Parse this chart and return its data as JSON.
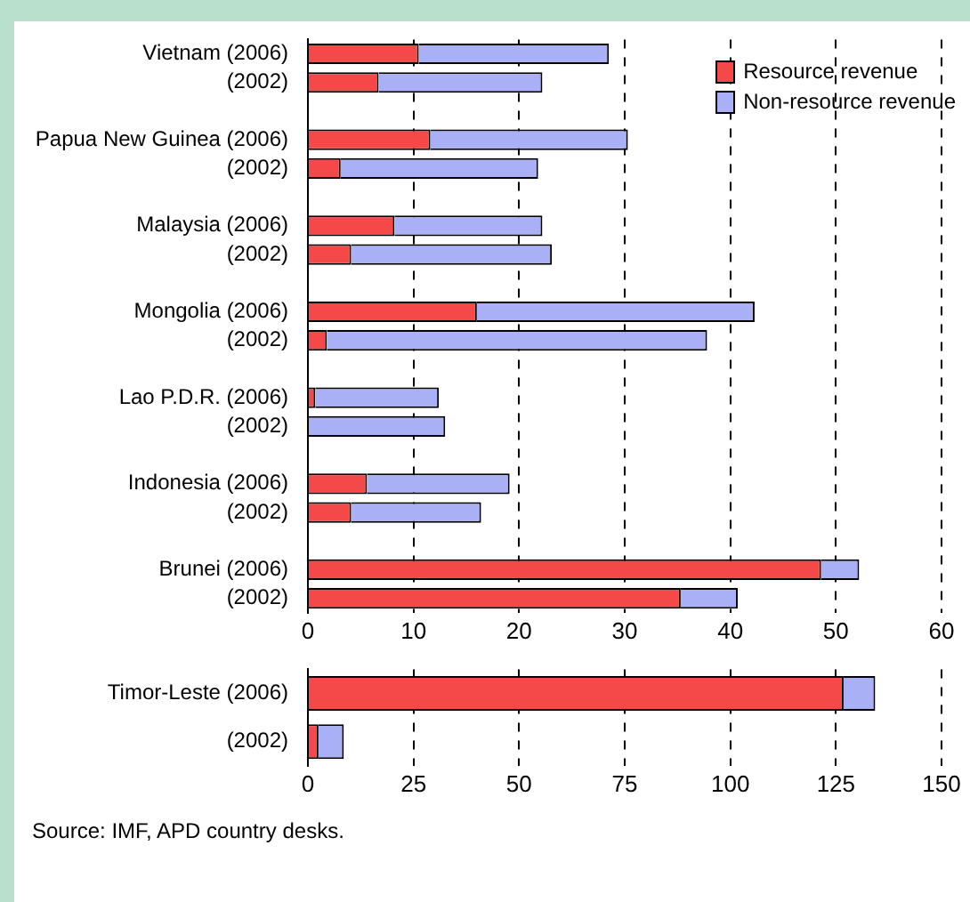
{
  "chart_data": [
    {
      "type": "bar",
      "orientation": "horizontal",
      "stacked": true,
      "categories": [
        "Vietnam (2006)",
        "(2002)",
        null,
        "Papua New Guinea (2006)",
        "(2002)",
        null,
        "Malaysia (2006)",
        "(2002)",
        null,
        "Mongolia (2006)",
        "(2002)",
        null,
        "Lao P.D.R. (2006)",
        "(2002)",
        null,
        "Indonesia (2006)",
        "(2002)",
        null,
        "Brunei (2006)",
        "(2002)"
      ],
      "series": [
        {
          "name": "Resource revenue",
          "color": "#f54848",
          "values": [
            10.5,
            6.7,
            null,
            11.6,
            3.1,
            null,
            8.2,
            4.1,
            null,
            16.0,
            1.8,
            null,
            0.7,
            0,
            null,
            5.6,
            4.1,
            null,
            48.6,
            35.3
          ]
        },
        {
          "name": "Non-resource revenue",
          "color": "#aab0f5",
          "values": [
            18.0,
            15.5,
            null,
            18.7,
            18.7,
            null,
            14.0,
            19.0,
            null,
            26.3,
            36.0,
            null,
            11.7,
            13.0,
            null,
            13.5,
            12.3,
            null,
            3.6,
            5.4
          ]
        }
      ],
      "xlim": [
        0,
        60
      ],
      "xticks": [
        0,
        10,
        20,
        30,
        40,
        50,
        60
      ],
      "grid": "x",
      "line_style": "dashed",
      "legend": "top right"
    },
    {
      "type": "bar",
      "orientation": "horizontal",
      "stacked": true,
      "categories": [
        "Timor-Leste (2006)",
        "(2002)"
      ],
      "series": [
        {
          "color": "#f54848",
          "values": [
            126.8,
            2.5
          ]
        },
        {
          "color": "#aab0f5",
          "values": [
            7.5,
            6.0
          ]
        }
      ],
      "xlim": [
        0,
        150
      ],
      "xticks": [
        0,
        25,
        50,
        75,
        100,
        125,
        150
      ],
      "grid": "x",
      "line_style": "dashed",
      "annotations": [
        "Source: IMF, APD country desks."
      ]
    }
  ]
}
